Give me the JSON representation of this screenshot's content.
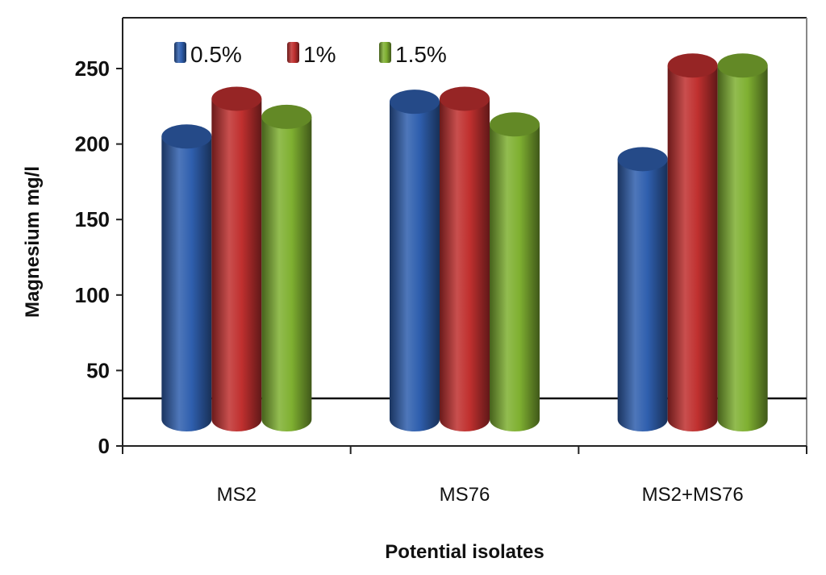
{
  "chart_data": {
    "type": "bar",
    "style": "3d-cylinder",
    "title": "",
    "xlabel": "Potential isolates",
    "ylabel": "Magnesium mg/l",
    "categories": [
      "MS2",
      "MS76",
      "MS2+MS76"
    ],
    "series": [
      {
        "name": "0.5%",
        "color": "#2f5fae",
        "values": [
          205,
          228,
          190
        ]
      },
      {
        "name": "1%",
        "color": "#c0302f",
        "values": [
          230,
          230,
          252
        ]
      },
      {
        "name": "1.5%",
        "color": "#7fb031",
        "values": [
          218,
          213,
          252
        ]
      }
    ],
    "ylim": [
      0,
      250
    ],
    "yticks": [
      "0",
      "50",
      "100",
      "150",
      "200",
      "250"
    ],
    "grid": false,
    "legend": "top"
  }
}
